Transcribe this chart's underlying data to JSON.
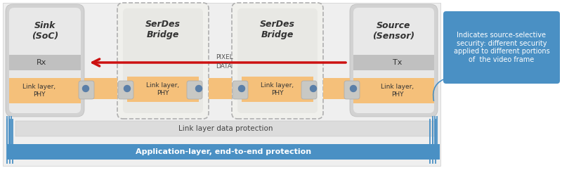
{
  "bg_color": "#f0f0f0",
  "diagram_bg": "#f0f0f0",
  "box_outer_color": "#c8c8c8",
  "box_inner_color": "#e6e6e6",
  "dashed_outer_color": "#cccccc",
  "dashed_inner_color": "#ebebeb",
  "rx_tx_color": "#c0c0c0",
  "orange_color": "#f5c07a",
  "connector_line_color": "#aaaaaa",
  "dot_color": "#5a7fa8",
  "red_arrow_color": "#cc1111",
  "link_protect_bg": "#dcdcdc",
  "link_protect_text": "#444444",
  "app_protect_bg": "#4a90c4",
  "app_protect_text": "#ffffff",
  "blue_line_color": "#4a90c4",
  "callout_bg": "#4a90c4",
  "callout_text_color": "#ffffff",
  "title_color": "#333333",
  "text_color": "#333333",
  "pixel_text_color": "#555555",
  "sink_title": "Sink\n(SoC)",
  "source_title": "Source\n(Sensor)",
  "serdes_title": "SerDes\nBridge",
  "rx_label": "Rx",
  "tx_label": "Tx",
  "link_layer_label": "Link layer,\nPHY",
  "pixel_label_1": "PIXEL",
  "pixel_label_2": "DATA",
  "link_protection_label": "Link layer data protection",
  "app_protection_label": "Application-layer, end-to-end protection",
  "callout_text": "Indicates source-selective\nsecurity: different security\napplied to different portions\nof  the video frame"
}
